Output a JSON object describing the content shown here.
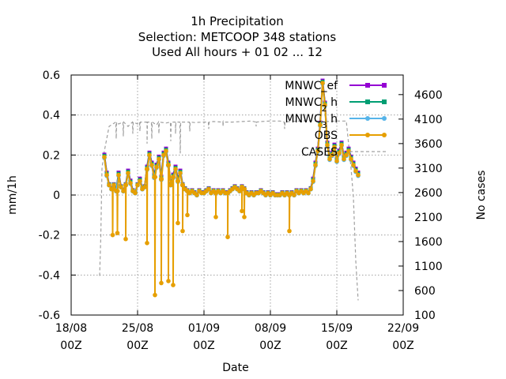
{
  "chart_data": {
    "type": "line",
    "title_lines": [
      "1h Precipitation",
      "Selection: METCOOP    348 stations",
      "Used  All hours  + 01 02 ... 12"
    ],
    "xlabel": "Date",
    "ylabel": "mm/1h",
    "y2label": "No cases",
    "xlim": [
      "2023-08-18 00:00",
      "2023-09-22 00:00"
    ],
    "ylim": [
      -0.6,
      0.6
    ],
    "y2lim": [
      100,
      5000
    ],
    "x_ticks": [
      {
        "date": "2023-08-18 00:00",
        "line1": "18/08",
        "line2": "00Z"
      },
      {
        "date": "2023-08-25 00:00",
        "line1": "25/08",
        "line2": "00Z"
      },
      {
        "date": "2023-09-01 00:00",
        "line1": "01/09",
        "line2": "00Z"
      },
      {
        "date": "2023-09-08 00:00",
        "line1": "08/09",
        "line2": "00Z"
      },
      {
        "date": "2023-09-15 00:00",
        "line1": "15/09",
        "line2": "00Z"
      },
      {
        "date": "2023-09-22 00:00",
        "line1": "22/09",
        "line2": "00Z"
      }
    ],
    "y_ticks": [
      "-0.6",
      "-0.4",
      "-0.2",
      "0",
      "0.2",
      "0.4",
      "0.6"
    ],
    "y2_ticks": [
      "100",
      "600",
      "1100",
      "1600",
      "2100",
      "2600",
      "3100",
      "3600",
      "4100",
      "4600"
    ],
    "grid": true,
    "legend_position": "top-right",
    "series": [
      {
        "name": "MNWC_ef",
        "label_main": "MNWC_ef",
        "label_sub": "",
        "color": "#9400d3",
        "marker": "square",
        "axis": "y",
        "offset": 0.012
      },
      {
        "name": "MNWC_2h",
        "label_main": "MNWC",
        "label_sub": "2",
        "label_tail": "h",
        "color": "#009e73",
        "marker": "square",
        "axis": "y",
        "offset": 0.006
      },
      {
        "name": "MNWC_3h",
        "label_main": "MNWC",
        "label_sub": "3",
        "label_tail": "h",
        "color": "#56b4e9",
        "marker": "circle",
        "axis": "y",
        "offset": -0.004
      },
      {
        "name": "OBS",
        "label_main": "OBS",
        "label_sub": "",
        "color": "#e69f00",
        "marker": "circle",
        "axis": "y",
        "offset": 0
      },
      {
        "name": "CASES",
        "label_main": "CASES",
        "label_sub": "",
        "color": "#a0a0a0",
        "marker": "none",
        "dashed": true,
        "axis": "y2"
      }
    ],
    "obs_profile": [
      [
        "2023-08-21 12:00",
        0.19
      ],
      [
        "2023-08-21 18:00",
        0.1
      ],
      [
        "2023-08-22 00:00",
        0.05
      ],
      [
        "2023-08-22 06:00",
        0.03
      ],
      [
        "2023-08-22 12:00",
        0.05
      ],
      [
        "2023-08-22 18:00",
        0.02
      ],
      [
        "2023-08-23 00:00",
        0.1
      ],
      [
        "2023-08-23 06:00",
        0.04
      ],
      [
        "2023-08-23 12:00",
        0.02
      ],
      [
        "2023-08-23 18:00",
        0.05
      ],
      [
        "2023-08-24 00:00",
        0.11
      ],
      [
        "2023-08-24 06:00",
        0.06
      ],
      [
        "2023-08-24 12:00",
        0.02
      ],
      [
        "2023-08-24 18:00",
        0.01
      ],
      [
        "2023-08-25 00:00",
        0.05
      ],
      [
        "2023-08-25 06:00",
        0.07
      ],
      [
        "2023-08-25 12:00",
        0.03
      ],
      [
        "2023-08-25 18:00",
        0.04
      ],
      [
        "2023-08-26 00:00",
        0.13
      ],
      [
        "2023-08-26 06:00",
        0.2
      ],
      [
        "2023-08-26 12:00",
        0.15
      ],
      [
        "2023-08-26 18:00",
        0.09
      ],
      [
        "2023-08-27 00:00",
        0.14
      ],
      [
        "2023-08-27 06:00",
        0.18
      ],
      [
        "2023-08-27 12:00",
        0.08
      ],
      [
        "2023-08-27 18:00",
        0.2
      ],
      [
        "2023-08-28 00:00",
        0.22
      ],
      [
        "2023-08-28 06:00",
        0.15
      ],
      [
        "2023-08-28 12:00",
        0.05
      ],
      [
        "2023-08-28 18:00",
        0.09
      ],
      [
        "2023-08-29 00:00",
        0.13
      ],
      [
        "2023-08-29 06:00",
        0.07
      ],
      [
        "2023-08-29 12:00",
        0.11
      ],
      [
        "2023-08-29 18:00",
        0.05
      ],
      [
        "2023-08-30 00:00",
        0.03
      ],
      [
        "2023-08-30 06:00",
        0.02
      ],
      [
        "2023-08-30 12:00",
        0.01
      ],
      [
        "2023-08-30 18:00",
        0.02
      ],
      [
        "2023-08-31 00:00",
        0.01
      ],
      [
        "2023-08-31 06:00",
        0.0
      ],
      [
        "2023-08-31 12:00",
        0.02
      ],
      [
        "2023-08-31 18:00",
        0.01
      ],
      [
        "2023-09-01 00:00",
        0.01
      ],
      [
        "2023-09-01 06:00",
        0.02
      ],
      [
        "2023-09-01 12:00",
        0.03
      ],
      [
        "2023-09-01 18:00",
        0.01
      ],
      [
        "2023-09-02 00:00",
        0.02
      ],
      [
        "2023-09-02 06:00",
        0.01
      ],
      [
        "2023-09-02 12:00",
        0.02
      ],
      [
        "2023-09-02 18:00",
        0.01
      ],
      [
        "2023-09-03 00:00",
        0.02
      ],
      [
        "2023-09-03 06:00",
        0.01
      ],
      [
        "2023-09-03 12:00",
        0.01
      ],
      [
        "2023-09-03 18:00",
        0.02
      ],
      [
        "2023-09-04 00:00",
        0.03
      ],
      [
        "2023-09-04 06:00",
        0.04
      ],
      [
        "2023-09-04 12:00",
        0.03
      ],
      [
        "2023-09-04 18:00",
        0.02
      ],
      [
        "2023-09-05 00:00",
        0.04
      ],
      [
        "2023-09-05 06:00",
        0.03
      ],
      [
        "2023-09-05 12:00",
        0.01
      ],
      [
        "2023-09-05 18:00",
        0.0
      ],
      [
        "2023-09-06 00:00",
        0.01
      ],
      [
        "2023-09-06 06:00",
        0.0
      ],
      [
        "2023-09-06 12:00",
        0.01
      ],
      [
        "2023-09-06 18:00",
        0.01
      ],
      [
        "2023-09-07 00:00",
        0.02
      ],
      [
        "2023-09-07 06:00",
        0.01
      ],
      [
        "2023-09-07 12:00",
        0.0
      ],
      [
        "2023-09-07 18:00",
        0.01
      ],
      [
        "2023-09-08 00:00",
        0.0
      ],
      [
        "2023-09-08 06:00",
        0.01
      ],
      [
        "2023-09-08 12:00",
        0.0
      ],
      [
        "2023-09-08 18:00",
        0.0
      ],
      [
        "2023-09-09 00:00",
        0.0
      ],
      [
        "2023-09-09 06:00",
        0.01
      ],
      [
        "2023-09-09 12:00",
        0.0
      ],
      [
        "2023-09-09 18:00",
        0.01
      ],
      [
        "2023-09-10 00:00",
        0.0
      ],
      [
        "2023-09-10 06:00",
        0.01
      ],
      [
        "2023-09-10 12:00",
        0.0
      ],
      [
        "2023-09-10 18:00",
        0.02
      ],
      [
        "2023-09-11 00:00",
        0.01
      ],
      [
        "2023-09-11 06:00",
        0.02
      ],
      [
        "2023-09-11 12:00",
        0.01
      ],
      [
        "2023-09-11 18:00",
        0.02
      ],
      [
        "2023-09-12 00:00",
        0.01
      ],
      [
        "2023-09-12 06:00",
        0.03
      ],
      [
        "2023-09-12 12:00",
        0.07
      ],
      [
        "2023-09-12 18:00",
        0.15
      ],
      [
        "2023-09-13 00:00",
        0.22
      ],
      [
        "2023-09-13 06:00",
        0.35
      ],
      [
        "2023-09-13 12:00",
        0.56
      ],
      [
        "2023-09-13 18:00",
        0.45
      ],
      [
        "2023-09-14 00:00",
        0.25
      ],
      [
        "2023-09-14 06:00",
        0.18
      ],
      [
        "2023-09-14 12:00",
        0.2
      ],
      [
        "2023-09-14 18:00",
        0.24
      ],
      [
        "2023-09-15 00:00",
        0.17
      ],
      [
        "2023-09-15 06:00",
        0.21
      ],
      [
        "2023-09-15 12:00",
        0.25
      ],
      [
        "2023-09-15 18:00",
        0.18
      ],
      [
        "2023-09-16 00:00",
        0.2
      ],
      [
        "2023-09-16 06:00",
        0.22
      ],
      [
        "2023-09-16 12:00",
        0.18
      ],
      [
        "2023-09-16 18:00",
        0.15
      ],
      [
        "2023-09-17 00:00",
        0.12
      ],
      [
        "2023-09-17 06:00",
        0.1
      ]
    ],
    "obs_dips": [
      [
        "2023-08-22 09:00",
        -0.2
      ],
      [
        "2023-08-22 21:00",
        -0.19
      ],
      [
        "2023-08-23 18:00",
        -0.22
      ],
      [
        "2023-08-26 00:00",
        -0.24
      ],
      [
        "2023-08-26 20:00",
        -0.5
      ],
      [
        "2023-08-27 12:00",
        -0.44
      ],
      [
        "2023-08-28 06:00",
        -0.43
      ],
      [
        "2023-08-28 18:00",
        -0.45
      ],
      [
        "2023-08-29 06:00",
        -0.14
      ],
      [
        "2023-08-29 18:00",
        -0.18
      ],
      [
        "2023-08-30 06:00",
        -0.1
      ],
      [
        "2023-09-02 06:00",
        -0.11
      ],
      [
        "2023-09-03 12:00",
        -0.21
      ],
      [
        "2023-09-05 00:00",
        -0.08
      ],
      [
        "2023-09-05 06:00",
        -0.11
      ],
      [
        "2023-09-10 00:00",
        -0.18
      ]
    ],
    "cases": [
      [
        "2023-08-21 00:00",
        900
      ],
      [
        "2023-08-21 03:00",
        1700
      ],
      [
        "2023-08-21 06:00",
        3100
      ],
      [
        "2023-08-21 12:00",
        3450
      ],
      [
        "2023-08-22 00:00",
        3950
      ],
      [
        "2023-08-23 00:00",
        4000
      ],
      [
        "2023-08-24 00:00",
        3950
      ],
      [
        "2023-08-25 00:00",
        4000
      ],
      [
        "2023-08-26 00:00",
        4010
      ],
      [
        "2023-08-27 00:00",
        3980
      ],
      [
        "2023-08-28 00:00",
        4020
      ],
      [
        "2023-08-29 00:00",
        4030
      ],
      [
        "2023-08-30 00:00",
        4040
      ],
      [
        "2023-08-31 00:00",
        4030
      ],
      [
        "2023-09-01 00:00",
        4040
      ],
      [
        "2023-09-02 00:00",
        4050
      ],
      [
        "2023-09-03 00:00",
        4050
      ],
      [
        "2023-09-04 00:00",
        4040
      ],
      [
        "2023-09-05 00:00",
        4050
      ],
      [
        "2023-09-06 00:00",
        4060
      ],
      [
        "2023-09-07 00:00",
        4050
      ],
      [
        "2023-09-08 00:00",
        4060
      ],
      [
        "2023-09-09 00:00",
        4060
      ],
      [
        "2023-09-10 00:00",
        4050
      ],
      [
        "2023-09-11 00:00",
        4060
      ],
      [
        "2023-09-12 00:00",
        4070
      ],
      [
        "2023-09-13 00:00",
        4060
      ],
      [
        "2023-09-14 00:00",
        4050
      ],
      [
        "2023-09-15 00:00",
        4060
      ],
      [
        "2023-09-16 00:00",
        4060
      ],
      [
        "2023-09-16 12:00",
        3100
      ],
      [
        "2023-09-16 18:00",
        2500
      ],
      [
        "2023-09-17 00:00",
        1200
      ],
      [
        "2023-09-17 06:00",
        400
      ]
    ],
    "cases_dips": [
      [
        "2023-08-22 18:00",
        3700
      ],
      [
        "2023-08-23 12:00",
        3750
      ],
      [
        "2023-08-24 12:00",
        3800
      ],
      [
        "2023-08-25 06:00",
        3850
      ],
      [
        "2023-08-26 00:00",
        3600
      ],
      [
        "2023-08-26 12:00",
        3700
      ],
      [
        "2023-08-27 06:00",
        3800
      ],
      [
        "2023-08-28 12:00",
        3650
      ],
      [
        "2023-08-29 00:00",
        3800
      ],
      [
        "2023-08-29 12:00",
        3400
      ],
      [
        "2023-08-30 12:00",
        3850
      ],
      [
        "2023-09-01 12:00",
        3900
      ],
      [
        "2023-09-03 00:00",
        3950
      ],
      [
        "2023-09-06 12:00",
        3950
      ],
      [
        "2023-09-09 12:00",
        3900
      ]
    ]
  }
}
